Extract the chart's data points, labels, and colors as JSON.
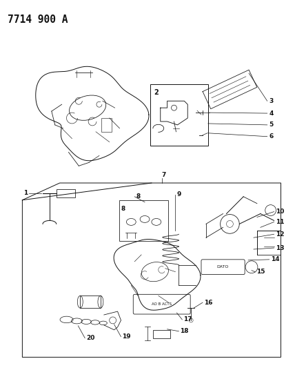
{
  "title": "7714 900 A",
  "bg_color": "#ffffff",
  "fig_width": 4.28,
  "fig_height": 5.33,
  "dpi": 100,
  "color": "#111111",
  "title_fontsize": 10.5,
  "label_fontsize": 6.5
}
